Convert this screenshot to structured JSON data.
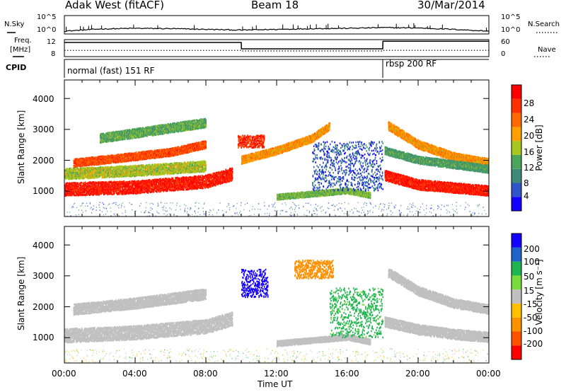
{
  "header": {
    "site": "Adak West (fitACF)",
    "beam": "Beam 18",
    "date": "30/Mar/2014"
  },
  "noise": {
    "left_label": "N.Sky",
    "right_label": "N.Search",
    "left_ticks": [
      "10^5",
      "10^0"
    ],
    "right_ticks": [
      "10^5",
      "10^0"
    ]
  },
  "freq": {
    "label_line1": "Freq.",
    "label_line2": "[MHz]",
    "left_ticks": [
      "12",
      "8"
    ],
    "right_label": "Nave",
    "right_ticks": [
      "60",
      "0"
    ]
  },
  "cpid": {
    "label": "CPID",
    "segments": [
      {
        "name": "normal (fast) 151 RF",
        "start_hour": 0,
        "end_hour": 18.0
      },
      {
        "name": "rbsp 200 RF",
        "start_hour": 18.0,
        "end_hour": 24
      }
    ]
  },
  "x_axis": {
    "ticks": [
      "00:00",
      "04:00",
      "08:00",
      "12:00",
      "16:00",
      "20:00",
      "00:00"
    ],
    "label": "Time UT"
  },
  "power_panel": {
    "ylabel": "Slant Range [km]",
    "yticks": [
      "1000",
      "2000",
      "3000",
      "4000"
    ],
    "colorbar": {
      "label": "Power [dB]",
      "ticks": [
        "4",
        "8",
        "12",
        "16",
        "20",
        "24",
        "28"
      ],
      "colors": [
        "#1400ff",
        "#2f55c8",
        "#3f8a7a",
        "#4aa55a",
        "#a8c820",
        "#ffa000",
        "#ff6a00",
        "#ff3000",
        "#ff0000"
      ]
    }
  },
  "velocity_panel": {
    "ylabel": "Slant Range [km]",
    "yticks": [
      "1000",
      "2000",
      "3000",
      "4000"
    ],
    "colorbar": {
      "label": "Velocity [m s⁻¹]",
      "ticks": [
        "200",
        "100",
        "50",
        "15",
        "-15",
        "-50",
        "-100",
        "-200"
      ],
      "colors": [
        "#1400ff",
        "#1e64c8",
        "#1eb450",
        "#78dc3c",
        "#c0c0c0",
        "#ffc000",
        "#ff9000",
        "#ff5000",
        "#ff0000"
      ]
    }
  },
  "chart_data": [
    {
      "type": "line",
      "title": "N.Sky / N.Search",
      "x_hours": [
        0,
        2,
        4,
        6,
        8,
        10,
        12,
        14,
        16,
        18,
        20,
        22,
        24
      ],
      "series": [
        {
          "name": "N.Sky",
          "log10_values": [
            0.8,
            1.4,
            1.6,
            1.5,
            1.3,
            1.1,
            1.3,
            1.5,
            1.6,
            1.8,
            1.7,
            1.3,
            0.8
          ]
        }
      ],
      "ylim_log10": [
        0,
        5
      ]
    },
    {
      "type": "line",
      "title": "Freq. / Nave",
      "x_hours": [
        0,
        10.0,
        10.01,
        18.0,
        18.01,
        24
      ],
      "series": [
        {
          "name": "Freq. [MHz]",
          "values": [
            11.0,
            11.0,
            9.5,
            9.5,
            11.3,
            11.3
          ]
        },
        {
          "name": "Nave",
          "values": [
            22,
            22,
            20,
            20,
            22,
            22
          ]
        }
      ]
    },
    {
      "type": "heatmap",
      "title": "Power [dB]",
      "x_range_hours": [
        0,
        24
      ],
      "y_range_km": [
        180,
        4600
      ],
      "features": [
        {
          "kind": "band",
          "x_hours": [
            0,
            4,
            8,
            9.5
          ],
          "y_km": [
            1050,
            1120,
            1300,
            1550
          ],
          "width_km": 420,
          "value_db": 27
        },
        {
          "kind": "band",
          "x_hours": [
            0.5,
            3,
            6,
            8
          ],
          "y_km": [
            1900,
            2050,
            2250,
            2500
          ],
          "width_km": 260,
          "value_db": 24
        },
        {
          "kind": "band",
          "x_hours": [
            0,
            4,
            8
          ],
          "y_km": [
            1550,
            1650,
            1800
          ],
          "width_km": 350,
          "value_db": 16
        },
        {
          "kind": "band",
          "x_hours": [
            2,
            5,
            8
          ],
          "y_km": [
            2700,
            2950,
            3200
          ],
          "width_km": 300,
          "value_db": 13
        },
        {
          "kind": "blob",
          "x_hours": [
            9.8,
            11.3
          ],
          "y_km": [
            2400,
            2800
          ],
          "value_db": 26
        },
        {
          "kind": "band",
          "x_hours": [
            10,
            12,
            14,
            15
          ],
          "y_km": [
            2000,
            2300,
            2700,
            3100
          ],
          "width_km": 250,
          "value_db": 20
        },
        {
          "kind": "band",
          "x_hours": [
            12,
            14,
            16,
            17.3
          ],
          "y_km": [
            800,
            900,
            1000,
            850
          ],
          "width_km": 180,
          "value_db": 14
        },
        {
          "kind": "blob",
          "x_hours": [
            14,
            18
          ],
          "y_km": [
            1000,
            2600
          ],
          "value_db": 7
        },
        {
          "kind": "band",
          "x_hours": [
            18.1,
            20,
            22,
            24
          ],
          "y_km": [
            1500,
            1200,
            1100,
            1000
          ],
          "width_km": 330,
          "value_db": 27
        },
        {
          "kind": "band",
          "x_hours": [
            18.3,
            20,
            22,
            24
          ],
          "y_km": [
            3100,
            2500,
            2100,
            1900
          ],
          "width_km": 280,
          "value_db": 20
        },
        {
          "kind": "band",
          "x_hours": [
            18.1,
            20,
            24
          ],
          "y_km": [
            2300,
            2000,
            1700
          ],
          "width_km": 250,
          "value_db": 12
        }
      ]
    },
    {
      "type": "heatmap",
      "title": "Velocity [m s⁻¹]",
      "x_range_hours": [
        0,
        24
      ],
      "y_range_km": [
        180,
        4600
      ],
      "features": [
        {
          "kind": "band",
          "x_hours": [
            0,
            4,
            8,
            9.5
          ],
          "y_km": [
            1050,
            1150,
            1350,
            1600
          ],
          "width_km": 450,
          "value_ms": 0
        },
        {
          "kind": "band",
          "x_hours": [
            0.5,
            4,
            8
          ],
          "y_km": [
            1900,
            2100,
            2400
          ],
          "width_km": 350,
          "value_ms": 0
        },
        {
          "kind": "blob",
          "x_hours": [
            10,
            11.5
          ],
          "y_km": [
            2300,
            3200
          ],
          "value_ms": 200
        },
        {
          "kind": "blob",
          "x_hours": [
            13,
            15.2
          ],
          "y_km": [
            2900,
            3500
          ],
          "value_ms": -80
        },
        {
          "kind": "band",
          "x_hours": [
            12,
            14,
            16,
            17.3
          ],
          "y_km": [
            800,
            900,
            1000,
            850
          ],
          "width_km": 180,
          "value_ms": 0
        },
        {
          "kind": "blob",
          "x_hours": [
            15,
            18
          ],
          "y_km": [
            1000,
            2600
          ],
          "value_ms": 40
        },
        {
          "kind": "band",
          "x_hours": [
            18.1,
            20,
            22,
            24
          ],
          "y_km": [
            1500,
            1250,
            1100,
            1000
          ],
          "width_km": 330,
          "value_ms": 0
        },
        {
          "kind": "band",
          "x_hours": [
            18.3,
            20,
            22,
            24
          ],
          "y_km": [
            3100,
            2500,
            2100,
            1900
          ],
          "width_km": 300,
          "value_ms": 0
        }
      ]
    }
  ]
}
